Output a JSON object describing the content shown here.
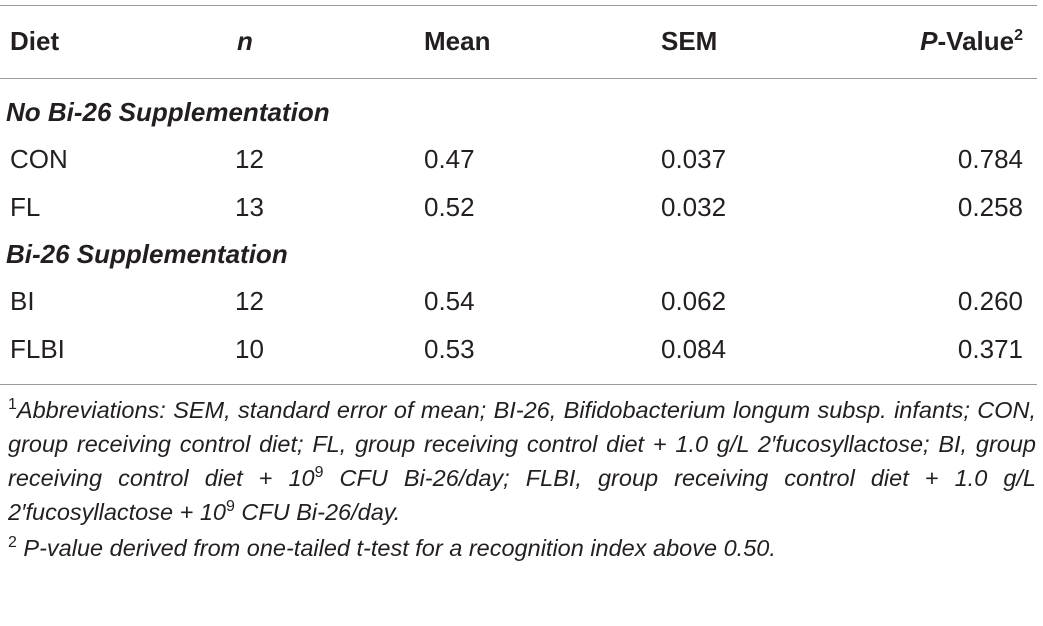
{
  "table": {
    "headers": {
      "diet": "Diet",
      "n": "n",
      "mean": "Mean",
      "sem": "SEM",
      "p_value_italic": "P",
      "p_value_rest": "-Value",
      "p_value_sup": "2"
    },
    "sections": [
      {
        "title": "No Bi-26 Supplementation",
        "rows": [
          {
            "diet": "CON",
            "n": "12",
            "mean": "0.47",
            "sem": "0.037",
            "p": "0.784"
          },
          {
            "diet": "FL",
            "n": "13",
            "mean": "0.52",
            "sem": "0.032",
            "p": "0.258"
          }
        ]
      },
      {
        "title": "Bi-26 Supplementation",
        "rows": [
          {
            "diet": "BI",
            "n": "12",
            "mean": "0.54",
            "sem": "0.062",
            "p": "0.260"
          },
          {
            "diet": "FLBI",
            "n": "10",
            "mean": "0.53",
            "sem": "0.084",
            "p": "0.371"
          }
        ]
      }
    ]
  },
  "footnotes": {
    "fn1_mark": "1",
    "fn1_text_a": "Abbreviations: SEM, standard error of mean; BI-26, Bifidobacterium longum subsp. infants; CON, group receiving control diet; FL, group receiving control diet + 1.0 g/L 2′fucosyllactose; BI, group receiving control diet + 10",
    "fn1_sup_a": "9",
    "fn1_text_b": " CFU Bi-26/day; FLBI, group receiving control diet + 1.0 g/L 2′fucosyllactose + 10",
    "fn1_sup_b": "9",
    "fn1_text_c": " CFU Bi-26/day.",
    "fn2_mark": "2",
    "fn2_text": " P-value derived from one-tailed t-test for a recognition index above 0.50."
  }
}
